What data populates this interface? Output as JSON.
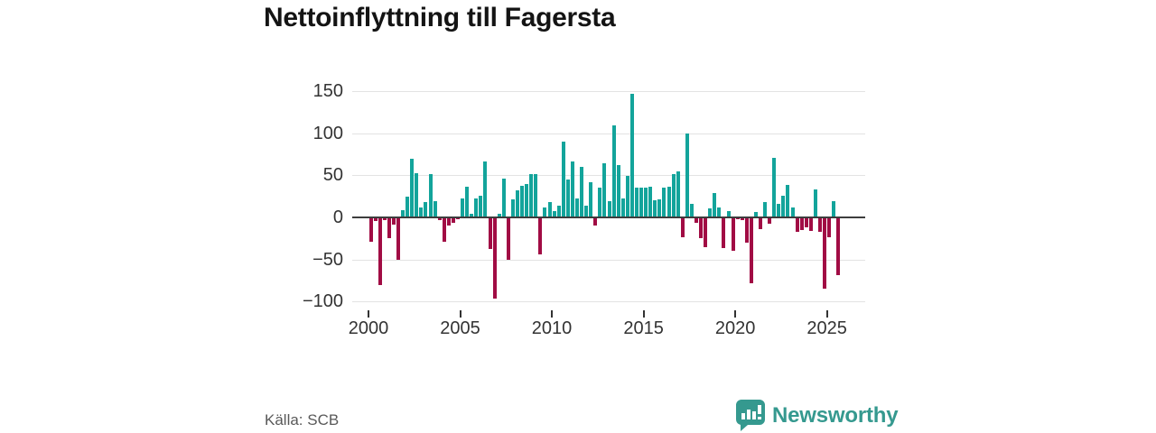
{
  "header": {
    "title": "Nettoinflyttning till Fagersta"
  },
  "footer": {
    "source": "Källa: SCB",
    "brand_name": "Newsworthy",
    "brand_icon": "newsworthy-chart-bubble-icon"
  },
  "chart_data": {
    "type": "bar",
    "title": "Nettoinflyttning till Fagersta",
    "frequency": "quarterly",
    "start_period": "2000Q1",
    "end_period": "2025Q3",
    "grid": true,
    "legend": false,
    "y_ticks": [
      150,
      100,
      50,
      0,
      -50,
      -100
    ],
    "ylim": [
      -110,
      160
    ],
    "x_tick_years": [
      2000,
      2005,
      2010,
      2015,
      2020,
      2025
    ],
    "x_tick_labels": [
      "2000",
      "2005",
      "2010",
      "2015",
      "2020",
      "2025"
    ],
    "colors": {
      "positive": "#13a49b",
      "negative": "#a10c44"
    },
    "series": [
      {
        "name": "Nettoinflyttning",
        "values": [
          -29,
          -4,
          -80,
          -3,
          -25,
          -9,
          -50,
          9,
          25,
          70,
          53,
          12,
          18,
          51,
          19,
          -3,
          -29,
          -10,
          -6,
          -2,
          22,
          37,
          4,
          23,
          26,
          67,
          -38,
          -97,
          4,
          46,
          -50,
          21,
          32,
          38,
          40,
          51,
          52,
          -44,
          12,
          18,
          8,
          14,
          90,
          45,
          66,
          23,
          60,
          14,
          42,
          -10,
          35,
          64,
          19,
          109,
          62,
          23,
          49,
          147,
          35,
          35,
          35,
          37,
          20,
          21,
          35,
          37,
          51,
          55,
          -24,
          100,
          16,
          -6,
          -25,
          -35,
          11,
          29,
          12,
          -37,
          7,
          -40,
          -2,
          -3,
          -30,
          -78,
          6,
          -14,
          18,
          -7,
          71,
          16,
          26,
          39,
          12,
          -17,
          -15,
          -12,
          -16,
          33,
          -17,
          -85,
          -24,
          19,
          -69
        ]
      }
    ]
  }
}
